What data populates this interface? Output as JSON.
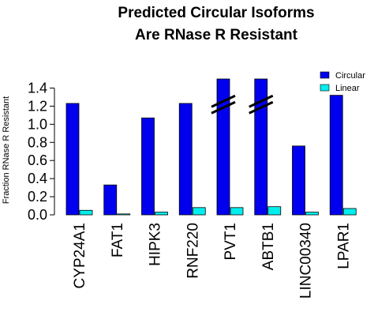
{
  "chart_data": {
    "type": "bar",
    "title": [
      "Predicted Circular Isoforms",
      "Are RNase R Resistant"
    ],
    "ylabel": "Fraction RNase R Resistant",
    "xlabel": "",
    "categories": [
      "CYP24A1",
      "FAT1",
      "HIPK3",
      "RNF220",
      "PVT1",
      "ABTB1",
      "LINC00340",
      "LPAR1"
    ],
    "series": [
      {
        "name": "Circular",
        "color": "#0000ee",
        "values": [
          1.23,
          0.33,
          1.07,
          1.23,
          1.5,
          1.5,
          0.76,
          1.32
        ]
      },
      {
        "name": "Linear",
        "color": "#00eeee",
        "values": [
          0.05,
          0.01,
          0.03,
          0.08,
          0.08,
          0.09,
          0.03,
          0.07
        ]
      }
    ],
    "broken_bars": [
      "PVT1",
      "ABTB1"
    ],
    "ylim": [
      0,
      1.5
    ],
    "yticks": [
      "0.0",
      "0.2",
      "0.4",
      "0.6",
      "0.8",
      "1.0",
      "1.2",
      "1.4"
    ],
    "legend_position": "top-right",
    "grid": false
  }
}
